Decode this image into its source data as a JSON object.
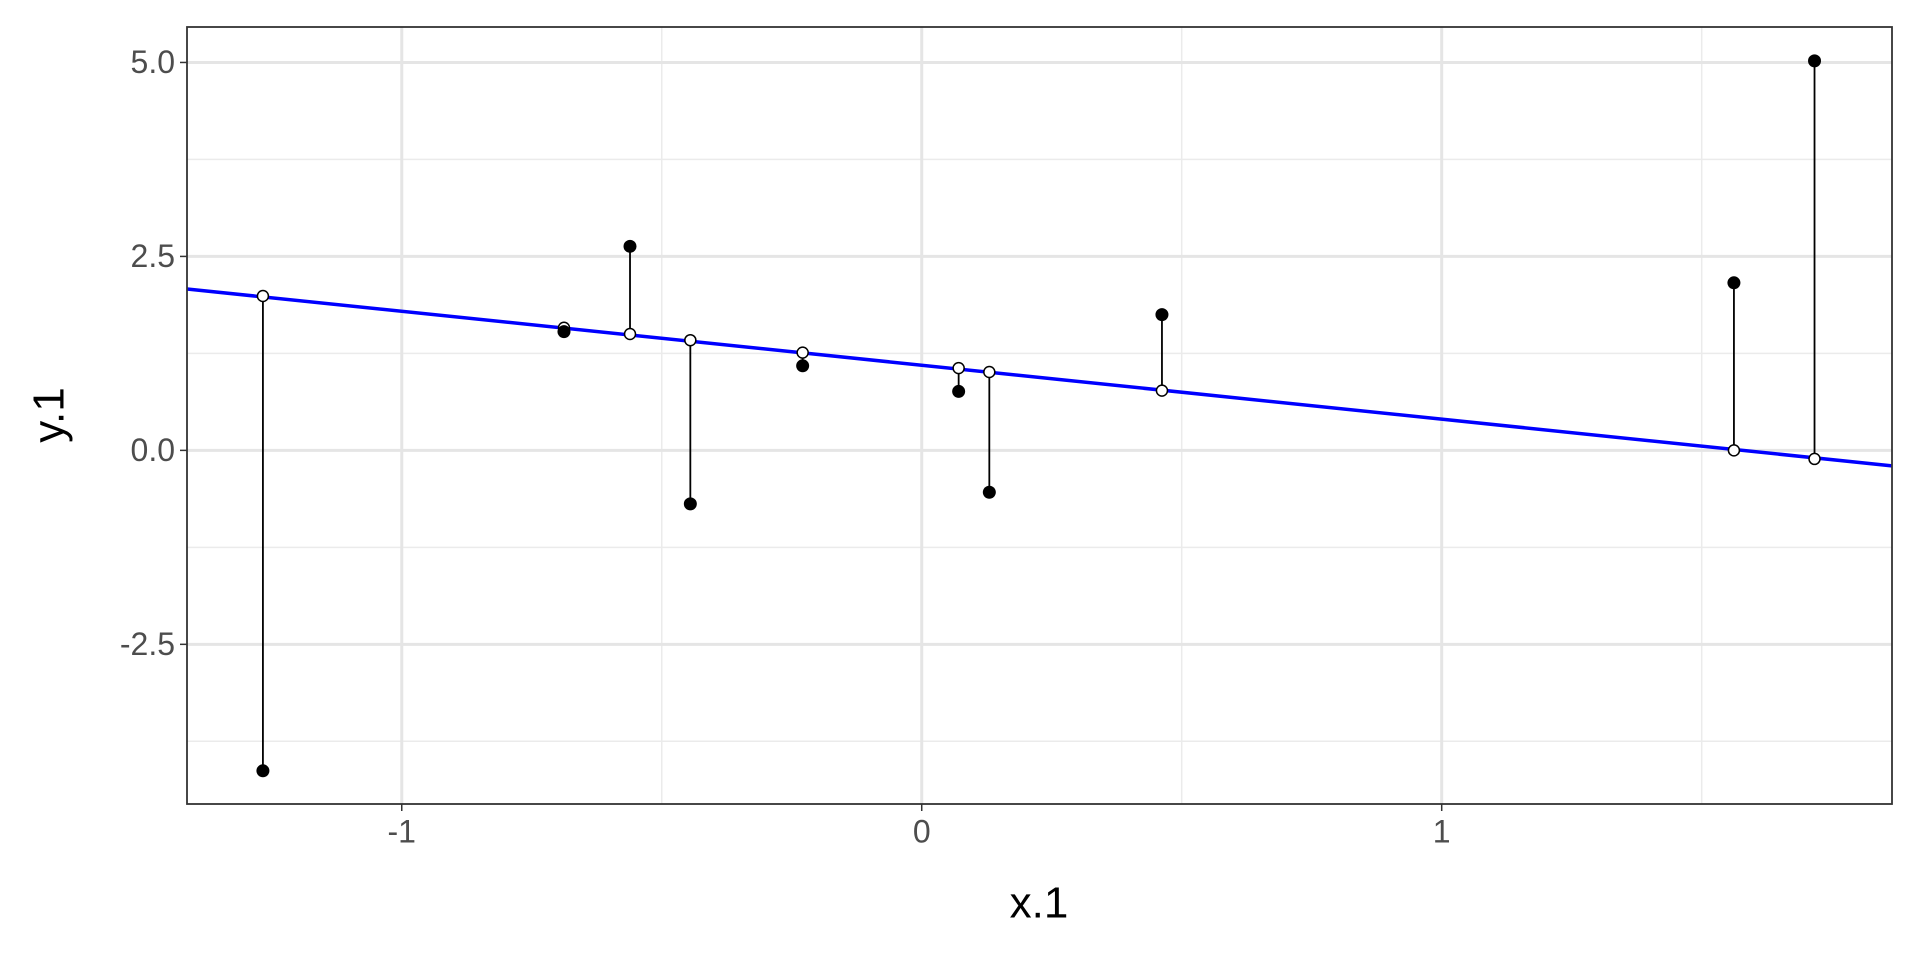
{
  "chart_data": {
    "type": "residual-scatter",
    "x_label": "x.1",
    "y_label": "y.1",
    "x": [
      -1.267,
      -0.688,
      -0.561,
      -0.445,
      -0.229,
      0.071,
      0.13,
      0.462,
      1.562,
      1.717
    ],
    "observed": [
      -4.13,
      1.53,
      2.63,
      -0.69,
      1.09,
      0.76,
      -0.54,
      1.75,
      2.16,
      5.02
    ],
    "fitted": [
      1.99,
      1.58,
      1.5,
      1.42,
      1.26,
      1.06,
      1.01,
      0.77,
      0.0,
      -0.11
    ],
    "point_color": "#000000",
    "line": {
      "x": [
        -1.413,
        1.866
      ],
      "y": [
        2.08,
        -0.2
      ],
      "color": "#0000ff"
    },
    "xlim": [
      -1.413,
      1.866
    ],
    "ylim": [
      -4.558,
      5.457
    ],
    "xticks": [
      -1,
      0,
      1
    ],
    "yticks": [
      {
        "value": 5,
        "label": "5.0"
      },
      {
        "value": 2.5,
        "label": "2.5"
      },
      {
        "value": 0,
        "label": "0.0"
      },
      {
        "value": -2.5,
        "label": "-2.5"
      }
    ],
    "minor_xgrid": [
      -0.5,
      0.5,
      1.5
    ],
    "minor_ygrid": [
      3.75,
      1.25,
      -1.25,
      -3.75
    ],
    "grid": true
  }
}
